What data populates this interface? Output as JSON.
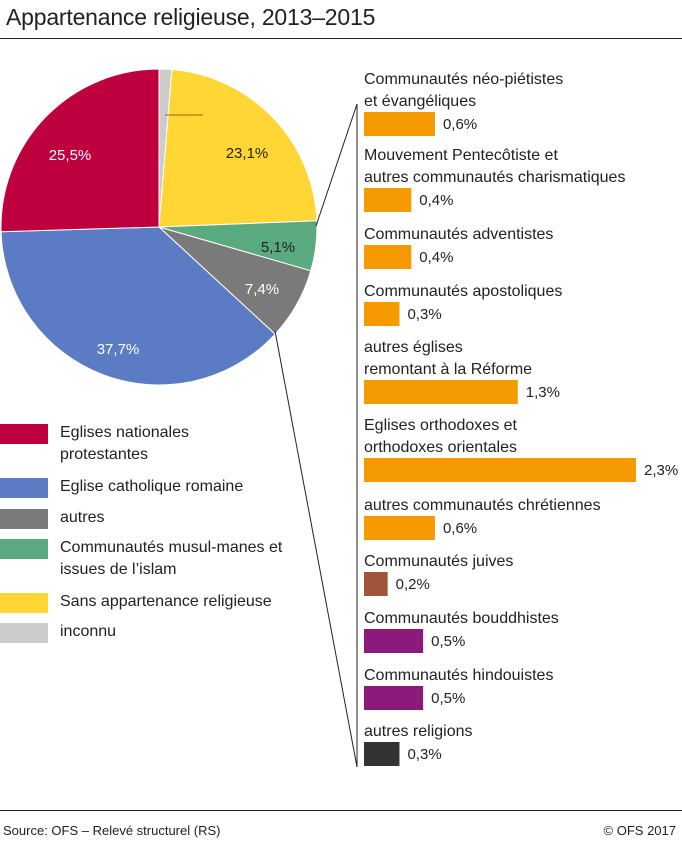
{
  "header": {
    "title": "Appartenance religieuse, 2013–2015"
  },
  "footer": {
    "source": "Source: OFS – Relevé structurel (RS)",
    "copyright": "© OFS 2017"
  },
  "legend": [
    {
      "label": "Eglises nationales protestantes",
      "color": "#bf003f"
    },
    {
      "label": "Eglise catholique romaine",
      "color": "#5b7bc4"
    },
    {
      "label": "autres",
      "color": "#7a7a7a"
    },
    {
      "label": "Communautés musul-manes et issues de l’islam",
      "color": "#5aaa80"
    },
    {
      "label": "Sans appartenance religieuse",
      "color": "#ffd633"
    },
    {
      "label": "inconnu",
      "color": "#cccccc"
    }
  ],
  "chart_data": [
    {
      "type": "pie",
      "slices": [
        {
          "name": "inconnu",
          "value": 1.3,
          "label": "1,3%",
          "color": "#cccccc"
        },
        {
          "name": "Sans appartenance religieuse",
          "value": 23.1,
          "label": "23,1%",
          "color": "#ffd633"
        },
        {
          "name": "Communautés musulmanes et issues de l’islam",
          "value": 5.1,
          "label": "5,1%",
          "color": "#5aaa80"
        },
        {
          "name": "autres",
          "value": 7.4,
          "label": "7,4%",
          "color": "#7a7a7a"
        },
        {
          "name": "Eglise catholique romaine",
          "value": 37.7,
          "label": "37,7%",
          "color": "#5b7bc4"
        },
        {
          "name": "Eglises nationales protestantes",
          "value": 25.5,
          "label": "25,5%",
          "color": "#bf003f"
        }
      ]
    },
    {
      "type": "bar",
      "orientation": "horizontal",
      "categories": [
        "Communautés néo-piétistes et évangéliques",
        "Mouvement Pentecôtiste et autres communautés charismatiques",
        "Communautés adventistes",
        "Communautés apostoliques",
        "autres églises remontant à la Réforme",
        "Eglises orthodoxes et orthodoxes orientales",
        "autres communautés chrétiennes",
        "Communautés juives",
        "Communautés bouddhistes",
        "Communautés hindouistes",
        "autres religions"
      ],
      "label_lines": [
        [
          "Communautés néo-piétistes",
          "et évangéliques"
        ],
        [
          "Mouvement Pentecôtiste et",
          "autres communautés charismatiques"
        ],
        [
          "Communautés adventistes"
        ],
        [
          "Communautés apostoliques"
        ],
        [
          "autres églises",
          "remontant à la Réforme"
        ],
        [
          "Eglises orthodoxes et",
          "orthodoxes orientales"
        ],
        [
          "autres communautés chrétiennes"
        ],
        [
          "Communautés juives"
        ],
        [
          "Communautés bouddhistes"
        ],
        [
          "Communautés hindouistes"
        ],
        [
          "autres religions"
        ]
      ],
      "values": [
        0.6,
        0.4,
        0.4,
        0.3,
        1.3,
        2.3,
        0.6,
        0.2,
        0.5,
        0.5,
        0.3
      ],
      "value_labels": [
        "0,6%",
        "0,4%",
        "0,4%",
        "0,3%",
        "1,3%",
        "2,3%",
        "0,6%",
        "0,2%",
        "0,5%",
        "0,5%",
        "0,3%"
      ],
      "colors": [
        "#f59a00",
        "#f59a00",
        "#f59a00",
        "#f59a00",
        "#f59a00",
        "#f59a00",
        "#f59a00",
        "#a0553a",
        "#8c1a7a",
        "#8c1a7a",
        "#333333"
      ]
    }
  ]
}
